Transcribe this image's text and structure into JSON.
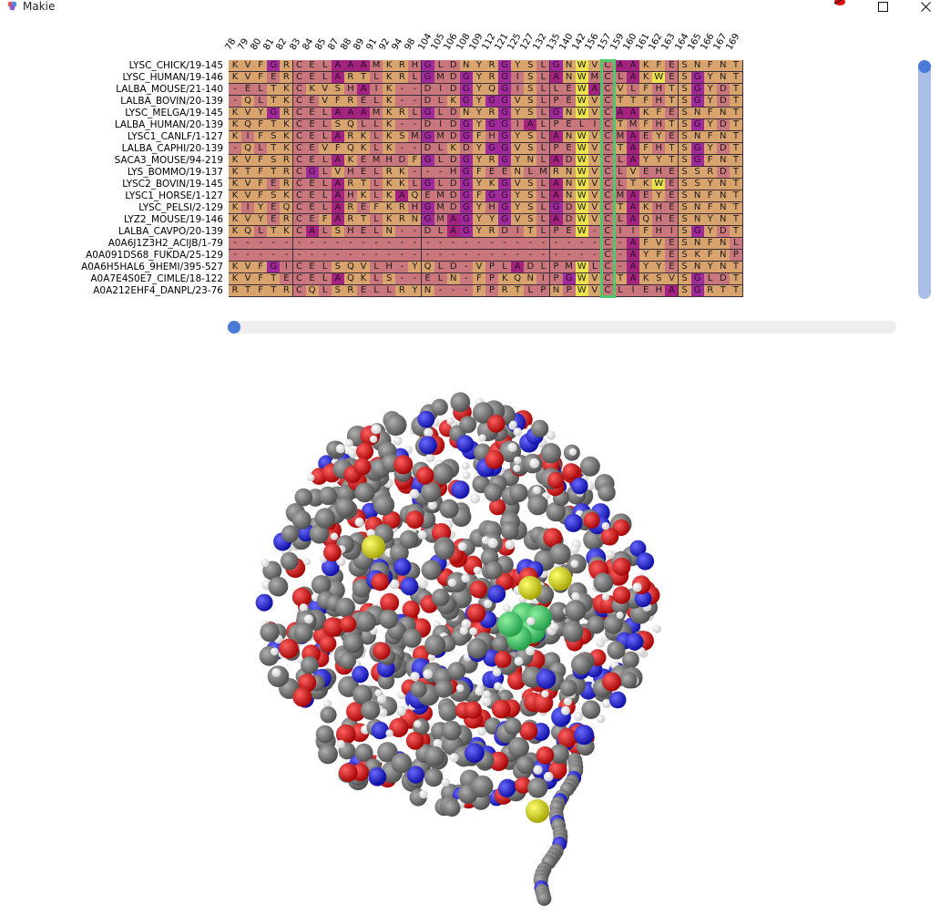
{
  "window": {
    "title": "Makie",
    "logo_icon": "makie-logo-icon",
    "minimize_icon": "minimize-icon",
    "maximize_icon": "maximize-icon",
    "close_icon": "close-icon"
  },
  "alignment": {
    "columns": [
      "78",
      "79",
      "80",
      "81",
      "82",
      "83",
      "84",
      "85",
      "87",
      "88",
      "89",
      "91",
      "92",
      "94",
      "98",
      "104",
      "105",
      "106",
      "108",
      "109",
      "112",
      "121",
      "125",
      "127",
      "132",
      "135",
      "140",
      "142",
      "156",
      "157",
      "159",
      "160",
      "161",
      "162",
      "163",
      "164",
      "165",
      "166",
      "167",
      "169"
    ],
    "highlight_column": "157",
    "sequences": [
      {
        "name": "LYSC_CHICK/19-145",
        "residues": "KVFGRCELAAAMKRHGLDNYRGYSLGNWVCAAKFESNFNT"
      },
      {
        "name": "LYSC_HUMAN/19-146",
        "residues": "KVFERCELARTLKRLGMDGYRGISLANWMCLAKWESGYNT"
      },
      {
        "name": "LALBA_MOUSE/21-140",
        "residues": "-ELTKCKVSHAIK--DIDGYQGISLLEWACVLFHTSGYDT"
      },
      {
        "name": "LALBA_BOVIN/20-139",
        "residues": "-QLTKCEVFRELK--DLKGYGGVSLPEWVCTTFHTSGYDT"
      },
      {
        "name": "LYSC_MELGA/19-145",
        "residues": "KVYGRCELAAAMKRLGLDNYRGYSLGNWVCAAKFESNFNT"
      },
      {
        "name": "LALBA_HUMAN/20-139",
        "residues": "KQFTKCELSQLLK--DIDGYGGIALPELICTMFHTSGYDT"
      },
      {
        "name": "LYSC1_CANLF/1-127",
        "residues": "KIFSKCELARKLKSMGMDGFHGYSLANWVCMAEYESNFNT"
      },
      {
        "name": "LALBA_CAPHI/20-139",
        "residues": "-QLTKCEVFQKLK--DLKDYGGVSLPEWVCTAFHTSGYDT"
      },
      {
        "name": "SACA3_MOUSE/94-219",
        "residues": "KVFSRCELAKEMHDFGLDGYRGYNLADWVCLAYYTSGFNT"
      },
      {
        "name": "LYS_BOMMO/19-137",
        "residues": "KTFTRCGLVHELRK---HGFEENLMRNWVCLVEHESSRDT"
      },
      {
        "name": "LYSC2_BOVIN/19-145",
        "residues": "KVFERCELARTLKKLGLDGYKGVSLANWVCLTKWESSYNT"
      },
      {
        "name": "LYSC1_HORSE/1-127",
        "residues": "KVFSKCELAHKLKAQEMDGFGGYSLANWVCMAEYESNFNT"
      },
      {
        "name": "LYSC_PELSI/2-129",
        "residues": "KIYEQCELAREFKRHGMDGYHGYSLGDWVCTAKHESNFNT"
      },
      {
        "name": "LYZ2_MOUSE/19-146",
        "residues": "KVYERCEFARTLKRNGMAGYYGVSLADWVCLAQHESNYNT"
      },
      {
        "name": "LALBA_CAVPO/20-139",
        "residues": "KQLTKCALSHELN--DLAGYRDITLPEW-CIIFHISGYDT"
      },
      {
        "name": "A0A6J1Z3H2_ACIJB/1-79",
        "residues": "-----------------------------C-AFVESNFNL"
      },
      {
        "name": "A0A091DS68_FUKDA/25-129",
        "residues": "-----------------------------C-AYFESKFNP"
      },
      {
        "name": "A0A6H5HAL6_9HEMI/395-527",
        "residues": "KVFGICELSQVLH-YQLD-VPLADLPMWLC-AYYESNYNT"
      },
      {
        "name": "A0A7E4S0E7_CIMLE/18-122",
        "residues": "KVFTECELAQKLS--ELN-FPKQNIPGWVCTAKSVSGLDT"
      },
      {
        "name": "A0A212EHF4_DANPL/23-76",
        "residues": "RTFTRCQLSRELLRYN---FPRTLPNPWVCLIEHASGRTT"
      }
    ],
    "residue_colors": {
      "A": "#a0207e",
      "G": "#a0207e",
      "V": "#d9a06a",
      "L": "#c27070",
      "I": "#c27070",
      "M": "#c27070",
      "F": "#d9a06a",
      "W": "#e6e04a",
      "Y": "#d7b47a",
      "C": "#c27070",
      "P": "#c27070",
      "S": "#d9a06a",
      "T": "#d9a06a",
      "N": "#d9a06a",
      "Q": "#d9a06a",
      "D": "#c27070",
      "E": "#c27070",
      "K": "#d9a06a",
      "R": "#d9a06a",
      "H": "#c27070",
      "-": "#c97575"
    },
    "special_colors": {
      "A": "#9e1f82",
      "G": "#9b2aa4",
      "W": "#eeea4a",
      "Y_yellow": "#ece34d"
    }
  },
  "scrollbars": {
    "vertical_icon": "vertical-scrollbar",
    "horizontal_icon": "horizontal-scrollbar"
  },
  "molecule": {
    "icon": "protein-3d-structure",
    "atom_colors": {
      "carbon": "#6e6e6e",
      "oxygen": "#e00000",
      "nitrogen": "#1515d8",
      "hydrogen": "#f4f4f4",
      "sulfur": "#d8d800",
      "highlight": "#3cc864"
    }
  }
}
